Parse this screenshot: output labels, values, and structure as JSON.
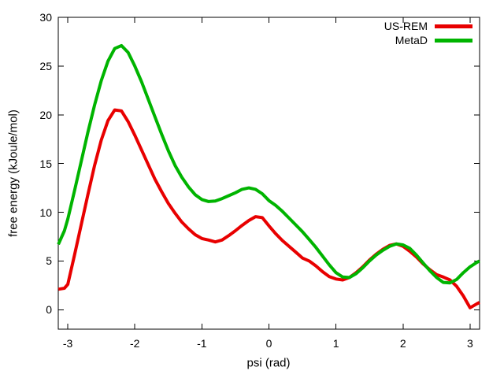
{
  "figure": {
    "background": "#ffffff",
    "frame_color": "#000000",
    "tick_color": "#000000"
  },
  "legend": {
    "position": "top-right",
    "items": [
      {
        "label": "US-REM",
        "color": "#e80000"
      },
      {
        "label": "MetaD",
        "color": "#00b400"
      }
    ]
  },
  "chart_data": {
    "type": "line",
    "title": "",
    "xlabel": "psi (rad)",
    "ylabel": "free energy (kJoule/mol)",
    "xlim": [
      -3.1416,
      3.1416
    ],
    "ylim": [
      -2,
      30
    ],
    "xticks": [
      -3,
      -2,
      -1,
      0,
      1,
      2,
      3
    ],
    "yticks": [
      0,
      5,
      10,
      15,
      20,
      25,
      30
    ],
    "grid": false,
    "legend_position": "top-right",
    "line_width": 4,
    "x": [
      -3.14,
      -3.05,
      -3.0,
      -2.9,
      -2.8,
      -2.7,
      -2.6,
      -2.5,
      -2.4,
      -2.3,
      -2.2,
      -2.1,
      -2.0,
      -1.9,
      -1.8,
      -1.7,
      -1.6,
      -1.5,
      -1.4,
      -1.3,
      -1.2,
      -1.1,
      -1.0,
      -0.9,
      -0.8,
      -0.7,
      -0.6,
      -0.5,
      -0.4,
      -0.3,
      -0.2,
      -0.1,
      0.0,
      0.1,
      0.2,
      0.3,
      0.4,
      0.5,
      0.6,
      0.7,
      0.8,
      0.9,
      1.0,
      1.1,
      1.2,
      1.3,
      1.4,
      1.5,
      1.6,
      1.7,
      1.8,
      1.9,
      2.0,
      2.1,
      2.2,
      2.3,
      2.4,
      2.5,
      2.6,
      2.7,
      2.8,
      2.9,
      3.0,
      3.1,
      3.14
    ],
    "series": [
      {
        "name": "US-REM",
        "color": "#e80000",
        "values": [
          2.1,
          2.2,
          2.6,
          5.6,
          8.7,
          11.8,
          14.8,
          17.4,
          19.4,
          20.5,
          20.4,
          19.3,
          17.9,
          16.4,
          14.9,
          13.4,
          12.1,
          10.9,
          9.9,
          9.0,
          8.3,
          7.7,
          7.3,
          7.15,
          6.95,
          7.15,
          7.6,
          8.1,
          8.65,
          9.15,
          9.55,
          9.45,
          8.6,
          7.8,
          7.1,
          6.5,
          5.9,
          5.3,
          5.0,
          4.5,
          3.9,
          3.4,
          3.15,
          3.05,
          3.3,
          3.8,
          4.4,
          5.1,
          5.7,
          6.2,
          6.6,
          6.75,
          6.5,
          6.0,
          5.4,
          4.7,
          4.1,
          3.6,
          3.35,
          3.05,
          2.4,
          1.4,
          0.2,
          0.6,
          0.75
        ]
      },
      {
        "name": "MetaD",
        "color": "#00b400",
        "values": [
          6.7,
          8.1,
          9.3,
          12.2,
          15.2,
          18.2,
          21.0,
          23.5,
          25.5,
          26.8,
          27.1,
          26.4,
          25.0,
          23.4,
          21.6,
          19.8,
          18.0,
          16.3,
          14.8,
          13.6,
          12.6,
          11.8,
          11.3,
          11.1,
          11.15,
          11.4,
          11.7,
          12.0,
          12.35,
          12.5,
          12.35,
          11.9,
          11.2,
          10.7,
          10.1,
          9.4,
          8.7,
          8.0,
          7.2,
          6.4,
          5.5,
          4.6,
          3.8,
          3.35,
          3.3,
          3.7,
          4.3,
          5.0,
          5.6,
          6.1,
          6.5,
          6.75,
          6.65,
          6.3,
          5.6,
          4.8,
          4.0,
          3.3,
          2.8,
          2.75,
          3.1,
          3.8,
          4.4,
          4.85,
          5.0
        ]
      }
    ]
  }
}
